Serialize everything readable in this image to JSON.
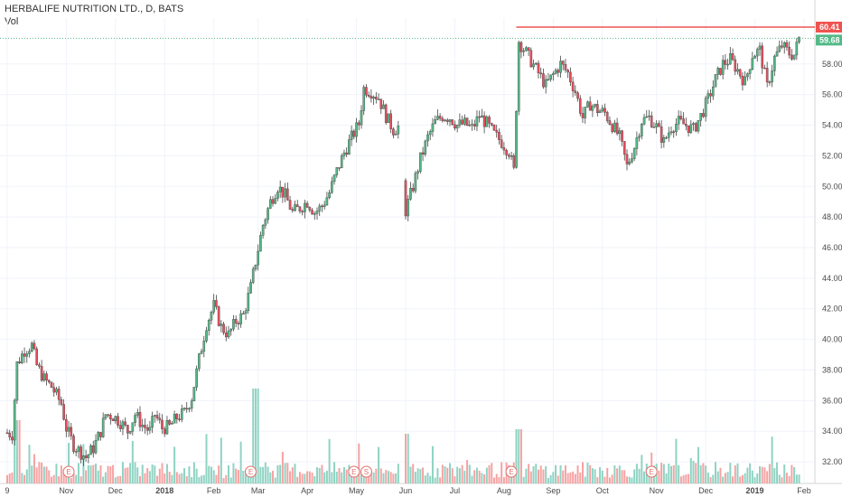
{
  "header": {
    "title": "HERBALIFE NUTRITION LTD., D, BATS",
    "volume_label": "Vol"
  },
  "colors": {
    "up": "#53b987",
    "down": "#eb4d5c",
    "vol_up": "#8fd3c3",
    "vol_down": "#f5a3a3",
    "resistance": "#ef5350",
    "last_price": "#53b987",
    "grid": "#f0f3fa",
    "event": "#e0706c"
  },
  "chart_data": {
    "type": "candlestick",
    "title": "HERBALIFE NUTRITION LTD., D, BATS",
    "y_axis": {
      "range": [
        31.0,
        61.0
      ],
      "ticks": [
        "32.00",
        "34.00",
        "36.00",
        "38.00",
        "40.00",
        "42.00",
        "44.00",
        "46.00",
        "48.00",
        "50.00",
        "52.00",
        "54.00",
        "56.00",
        "58.00"
      ]
    },
    "x_axis": {
      "labels": [
        {
          "text": "9",
          "bold": false,
          "x": 0
        },
        {
          "text": "Nov",
          "bold": false,
          "x": 1.2
        },
        {
          "text": "Dec",
          "bold": false,
          "x": 2.2
        },
        {
          "text": "2018",
          "bold": true,
          "x": 3.2
        },
        {
          "text": "Feb",
          "bold": false,
          "x": 4.2
        },
        {
          "text": "Mar",
          "bold": false,
          "x": 5.1
        },
        {
          "text": "Apr",
          "bold": false,
          "x": 6.1
        },
        {
          "text": "May",
          "bold": false,
          "x": 7.1
        },
        {
          "text": "Jun",
          "bold": false,
          "x": 8.1
        },
        {
          "text": "Jul",
          "bold": false,
          "x": 9.1
        },
        {
          "text": "Aug",
          "bold": false,
          "x": 10.1
        },
        {
          "text": "Sep",
          "bold": false,
          "x": 11.1
        },
        {
          "text": "Oct",
          "bold": false,
          "x": 12.1
        },
        {
          "text": "Nov",
          "bold": false,
          "x": 13.2
        },
        {
          "text": "Dec",
          "bold": false,
          "x": 14.2
        },
        {
          "text": "2019",
          "bold": true,
          "x": 15.2
        },
        {
          "text": "Feb",
          "bold": false,
          "x": 16.2
        }
      ]
    },
    "price_path": [
      [
        0,
        33.9
      ],
      [
        0.1,
        33.8
      ],
      [
        0.2,
        38.4
      ],
      [
        0.35,
        39.3
      ],
      [
        0.5,
        39.6
      ],
      [
        0.6,
        38.3
      ],
      [
        0.75,
        37.4
      ],
      [
        0.9,
        36.9
      ],
      [
        1.1,
        35.8
      ],
      [
        1.2,
        34.2
      ],
      [
        1.35,
        33.1
      ],
      [
        1.5,
        32.6
      ],
      [
        1.6,
        32.3
      ],
      [
        1.75,
        32.9
      ],
      [
        1.9,
        34.0
      ],
      [
        2.0,
        35.1
      ],
      [
        2.15,
        35.0
      ],
      [
        2.3,
        34.6
      ],
      [
        2.45,
        34.0
      ],
      [
        2.6,
        35.1
      ],
      [
        2.75,
        34.4
      ],
      [
        2.9,
        34.0
      ],
      [
        3.0,
        35.1
      ],
      [
        3.15,
        34.2
      ],
      [
        3.3,
        34.3
      ],
      [
        3.45,
        34.9
      ],
      [
        3.6,
        35.2
      ],
      [
        3.75,
        36.2
      ],
      [
        3.9,
        38.7
      ],
      [
        4.05,
        41.0
      ],
      [
        4.2,
        42.2
      ],
      [
        4.35,
        40.8
      ],
      [
        4.5,
        40.3
      ],
      [
        4.65,
        41.2
      ],
      [
        4.8,
        41.6
      ],
      [
        4.95,
        43.4
      ],
      [
        5.05,
        45.1
      ],
      [
        5.2,
        47.5
      ],
      [
        5.35,
        49.0
      ],
      [
        5.5,
        50.0
      ],
      [
        5.65,
        49.4
      ],
      [
        5.8,
        48.3
      ],
      [
        5.95,
        48.6
      ],
      [
        6.1,
        49.0
      ],
      [
        6.25,
        48.3
      ],
      [
        6.4,
        48.7
      ],
      [
        6.55,
        49.6
      ],
      [
        6.7,
        51.0
      ],
      [
        6.85,
        52.2
      ],
      [
        7.0,
        53.2
      ],
      [
        7.15,
        54.1
      ],
      [
        7.25,
        56.4
      ],
      [
        7.4,
        56.2
      ],
      [
        7.55,
        55.8
      ],
      [
        7.7,
        54.6
      ],
      [
        7.85,
        53.7
      ],
      [
        7.95,
        53.9
      ],
      [
        8.1,
        48.4
      ],
      [
        8.25,
        50.0
      ],
      [
        8.4,
        51.8
      ],
      [
        8.55,
        53.2
      ],
      [
        8.7,
        54.2
      ],
      [
        8.85,
        54.6
      ],
      [
        9.0,
        54.5
      ],
      [
        9.15,
        54.0
      ],
      [
        9.3,
        54.1
      ],
      [
        9.45,
        53.8
      ],
      [
        9.6,
        54.6
      ],
      [
        9.75,
        54.1
      ],
      [
        9.9,
        53.4
      ],
      [
        10.05,
        52.9
      ],
      [
        10.2,
        52.3
      ],
      [
        10.3,
        51.0
      ],
      [
        10.4,
        59.5
      ],
      [
        10.5,
        59.0
      ],
      [
        10.65,
        58.2
      ],
      [
        10.8,
        57.4
      ],
      [
        10.95,
        56.6
      ],
      [
        11.1,
        57.3
      ],
      [
        11.25,
        58.0
      ],
      [
        11.4,
        57.4
      ],
      [
        11.55,
        56.2
      ],
      [
        11.7,
        54.5
      ],
      [
        11.85,
        55.4
      ],
      [
        12.0,
        55.0
      ],
      [
        12.15,
        54.8
      ],
      [
        12.3,
        54.0
      ],
      [
        12.45,
        53.2
      ],
      [
        12.6,
        51.3
      ],
      [
        12.75,
        52.6
      ],
      [
        12.9,
        54.3
      ],
      [
        13.05,
        54.5
      ],
      [
        13.2,
        53.9
      ],
      [
        13.35,
        52.9
      ],
      [
        13.5,
        53.9
      ],
      [
        13.65,
        54.2
      ],
      [
        13.8,
        54.0
      ],
      [
        13.95,
        53.7
      ],
      [
        14.1,
        54.6
      ],
      [
        14.25,
        55.7
      ],
      [
        14.4,
        57.0
      ],
      [
        14.55,
        58.0
      ],
      [
        14.7,
        58.3
      ],
      [
        14.85,
        57.6
      ],
      [
        15.0,
        56.8
      ],
      [
        15.15,
        58.6
      ],
      [
        15.3,
        58.9
      ],
      [
        15.45,
        56.5
      ],
      [
        15.6,
        58.4
      ],
      [
        15.75,
        59.2
      ],
      [
        15.9,
        58.7
      ],
      [
        16.0,
        58.6
      ],
      [
        16.1,
        59.68
      ]
    ],
    "resistance_level": 60.41,
    "resistance_start_x": 10.35,
    "last_price": 59.68,
    "price_badges": {
      "resistance": "60.41",
      "last": "59.68"
    },
    "volume_series_note": "daily volume bars (relative scale)",
    "events": [
      {
        "label": "E",
        "x": 1.25
      },
      {
        "label": "E",
        "x": 4.95
      },
      {
        "label": "E",
        "x": 7.05
      },
      {
        "label": "S",
        "x": 7.3
      },
      {
        "label": "E",
        "x": 10.25
      },
      {
        "label": "E",
        "x": 13.1
      }
    ]
  }
}
